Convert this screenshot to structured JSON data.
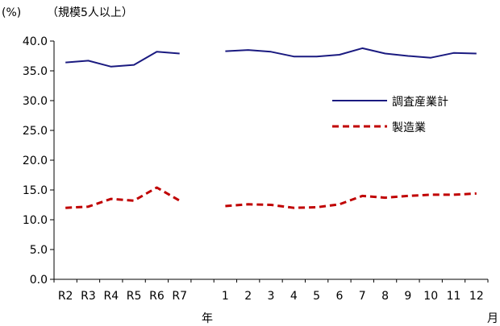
{
  "colors": {
    "series_1": "#1a1a80",
    "series_2": "#c00000",
    "axis": "#000000"
  },
  "chart_data": {
    "type": "line",
    "title": "",
    "subtitle": "",
    "unit_label": "(%)",
    "subtitle_label": "（規模5人以上）",
    "ylabel": "",
    "xlabel_year_unit": "年",
    "xlabel_month_unit": "月",
    "ylim": [
      0,
      40
    ],
    "ytick_labels": [
      "0.0",
      "5.0",
      "10.0",
      "15.0",
      "20.0",
      "25.0",
      "30.0",
      "35.0",
      "40.0"
    ],
    "ytick_values": [
      0,
      5,
      10,
      15,
      20,
      25,
      30,
      35,
      40
    ],
    "categories": [
      "R2",
      "R3",
      "R4",
      "R5",
      "R6",
      "R7",
      "",
      "1",
      "2",
      "3",
      "4",
      "5",
      "6",
      "7",
      "8",
      "9",
      "10",
      "11",
      "12"
    ],
    "series": [
      {
        "name": "調査産業計",
        "style": "solid",
        "values": [
          36.4,
          36.7,
          35.7,
          36.0,
          38.2,
          37.9,
          null,
          38.3,
          38.5,
          38.2,
          37.4,
          37.4,
          37.7,
          38.8,
          37.9,
          37.5,
          37.2,
          38.0,
          37.9
        ]
      },
      {
        "name": "製造業",
        "style": "dashed",
        "values": [
          12.0,
          12.2,
          13.5,
          13.2,
          15.4,
          13.2,
          null,
          12.3,
          12.6,
          12.5,
          12.0,
          12.1,
          12.6,
          14.0,
          13.7,
          14.0,
          14.2,
          14.2,
          14.4
        ]
      }
    ],
    "grid": false,
    "legend": "right"
  }
}
